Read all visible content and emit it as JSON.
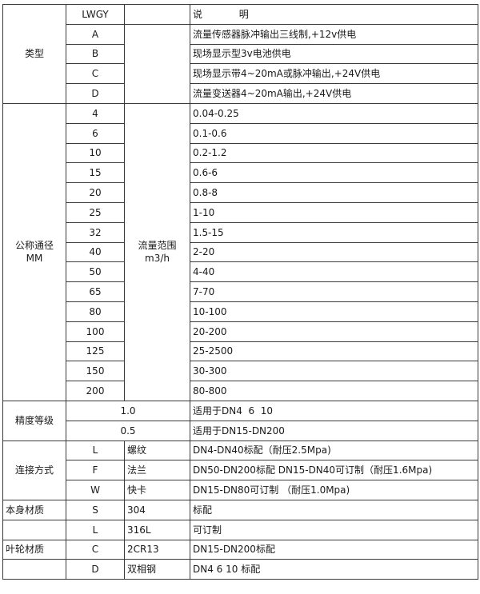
{
  "header": {
    "code": "LWGY",
    "desc": "说            明"
  },
  "type": {
    "label": "类型",
    "rows": [
      {
        "code": "A",
        "desc": "流量传感器脉冲输出三线制,+12v供电"
      },
      {
        "code": "B",
        "desc": "现场显示型3v电池供电"
      },
      {
        "code": "C",
        "desc": "现场显示带4~20mA或脉冲输出,+24V供电"
      },
      {
        "code": "D",
        "desc": "流量变送器4~20mA输出,+24V供电"
      }
    ]
  },
  "diameter": {
    "label": "公称通径\nMM",
    "flow_label": "流量范围\nm3/h",
    "rows": [
      {
        "dn": "4",
        "range": "0.04-0.25"
      },
      {
        "dn": "6",
        "range": "0.1-0.6"
      },
      {
        "dn": "10",
        "range": "0.2-1.2"
      },
      {
        "dn": "15",
        "range": "0.6-6"
      },
      {
        "dn": "20",
        "range": "0.8-8"
      },
      {
        "dn": "25",
        "range": "1-10"
      },
      {
        "dn": "32",
        "range": "1.5-15"
      },
      {
        "dn": "40",
        "range": "2-20"
      },
      {
        "dn": "50",
        "range": "4-40"
      },
      {
        "dn": "65",
        "range": "7-70"
      },
      {
        "dn": "80",
        "range": "10-100"
      },
      {
        "dn": "100",
        "range": "20-200"
      },
      {
        "dn": "125",
        "range": "25-2500"
      },
      {
        "dn": "150",
        "range": "30-300"
      },
      {
        "dn": "200",
        "range": "80-800"
      }
    ]
  },
  "accuracy": {
    "label": "精度等级",
    "rows": [
      {
        "grade": "1.0",
        "use": "适用于DN4  6  10"
      },
      {
        "grade": "0.5",
        "use": "适用于DN15-DN200"
      }
    ]
  },
  "connection": {
    "label": "连接方式",
    "rows": [
      {
        "code": "L",
        "name": "螺纹",
        "desc": "DN4-DN40标配（耐压2.5Mpa)"
      },
      {
        "code": "F",
        "name": "法兰",
        "desc": "DN50-DN200标配 DN15-DN40可订制（耐压1.6Mpa)"
      },
      {
        "code": "W",
        "name": "快卡",
        "desc": "DN15-DN80可订制 （耐压1.0Mpa)"
      }
    ]
  },
  "body_material": {
    "label": "本身材质",
    "rows": [
      {
        "code": "S",
        "name": "304",
        "desc": "标配"
      },
      {
        "code": "L",
        "name": "316L",
        "desc": "可订制"
      }
    ]
  },
  "impeller_material": {
    "label": "叶轮材质",
    "rows": [
      {
        "code": "C",
        "name": "2CR13",
        "desc": "DN15-DN200标配"
      },
      {
        "code": "D",
        "name": "双相钢",
        "desc": "DN4 6 10 标配"
      }
    ]
  }
}
